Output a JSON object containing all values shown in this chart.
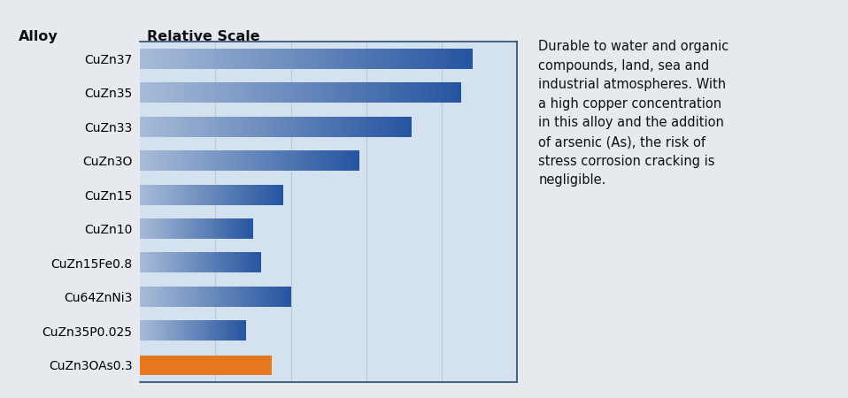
{
  "categories": [
    "CuZn37",
    "CuZn35",
    "CuZn33",
    "CuZn3O",
    "CuZn15",
    "CuZn10",
    "CuZn15Fe0.8",
    "Cu64ZnNi3",
    "CuZn35P0.025",
    "CuZn3OAs0.3"
  ],
  "values": [
    88,
    85,
    72,
    58,
    38,
    30,
    32,
    40,
    28,
    35
  ],
  "bar_colors": [
    "#2655a0",
    "#2655a0",
    "#2655a0",
    "#2655a0",
    "#2655a0",
    "#2655a0",
    "#2655a0",
    "#2655a0",
    "#2655a0",
    "#e8731a"
  ],
  "chart_bg": "#d4e1ee",
  "outer_bg": "#e6eaee",
  "border_color": "#2a4a6b",
  "grid_color": "#b8c8d8",
  "alloy_label": "Alloy",
  "scale_label": "Relative Scale",
  "description": "Durable to water and organic\ncompounds, land, sea and\nindustrial atmospheres. With\na high copper concentration\nin this alloy and the addition\nof arsenic (As), the risk of\nstress corrosion cracking is\nnegligible.",
  "xlim": [
    0,
    100
  ],
  "label_fontsize": 10,
  "header_fontsize": 11.5,
  "desc_fontsize": 10.5,
  "bar_light": [
    168,
    188,
    216
  ],
  "bar_dark": [
    38,
    85,
    160
  ],
  "orange_color": "#e87820"
}
